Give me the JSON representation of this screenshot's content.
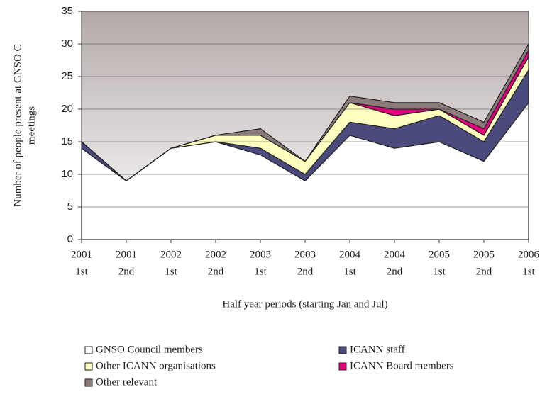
{
  "chart_data": {
    "type": "stacked_area",
    "ylabel": [
      "Number of people present at GNSO C",
      "meetings"
    ],
    "xlabel": "Half year periods (starting Jan and Jul)",
    "categories": [
      [
        "2001",
        "1st"
      ],
      [
        "2001",
        "2nd"
      ],
      [
        "2002",
        "1st"
      ],
      [
        "2002",
        "2nd"
      ],
      [
        "2003",
        "1st"
      ],
      [
        "2003",
        "2nd"
      ],
      [
        "2004",
        "1st"
      ],
      [
        "2004",
        "2nd"
      ],
      [
        "2005",
        "1st"
      ],
      [
        "2005",
        "2nd"
      ],
      [
        "2006",
        "1st"
      ]
    ],
    "series": [
      {
        "name": "GNSO Council members",
        "color": "#ffffff",
        "values": [
          14,
          9,
          14,
          15,
          13,
          9,
          16,
          14,
          15,
          12,
          21
        ]
      },
      {
        "name": "ICANN staff",
        "color": "#4b4a7d",
        "values": [
          1,
          0,
          0,
          0,
          1,
          1,
          2,
          3,
          4,
          3,
          5
        ]
      },
      {
        "name": "Other ICANN organisations",
        "color": "#ffffc0",
        "values": [
          0,
          0,
          0,
          1,
          2,
          2,
          3,
          2,
          1,
          1,
          2
        ]
      },
      {
        "name": "ICANN Board members",
        "color": "#e6007e",
        "values": [
          0,
          0,
          0,
          0,
          0,
          0,
          0,
          1,
          0,
          1,
          1
        ]
      },
      {
        "name": "Other relevant",
        "color": "#8c7b7b",
        "values": [
          0,
          0,
          0,
          0,
          1,
          0,
          1,
          1,
          1,
          1,
          1
        ]
      }
    ],
    "ylim": [
      0,
      35
    ],
    "yticks": [
      0,
      5,
      10,
      15,
      20,
      25,
      30,
      35
    ],
    "grid": true
  }
}
